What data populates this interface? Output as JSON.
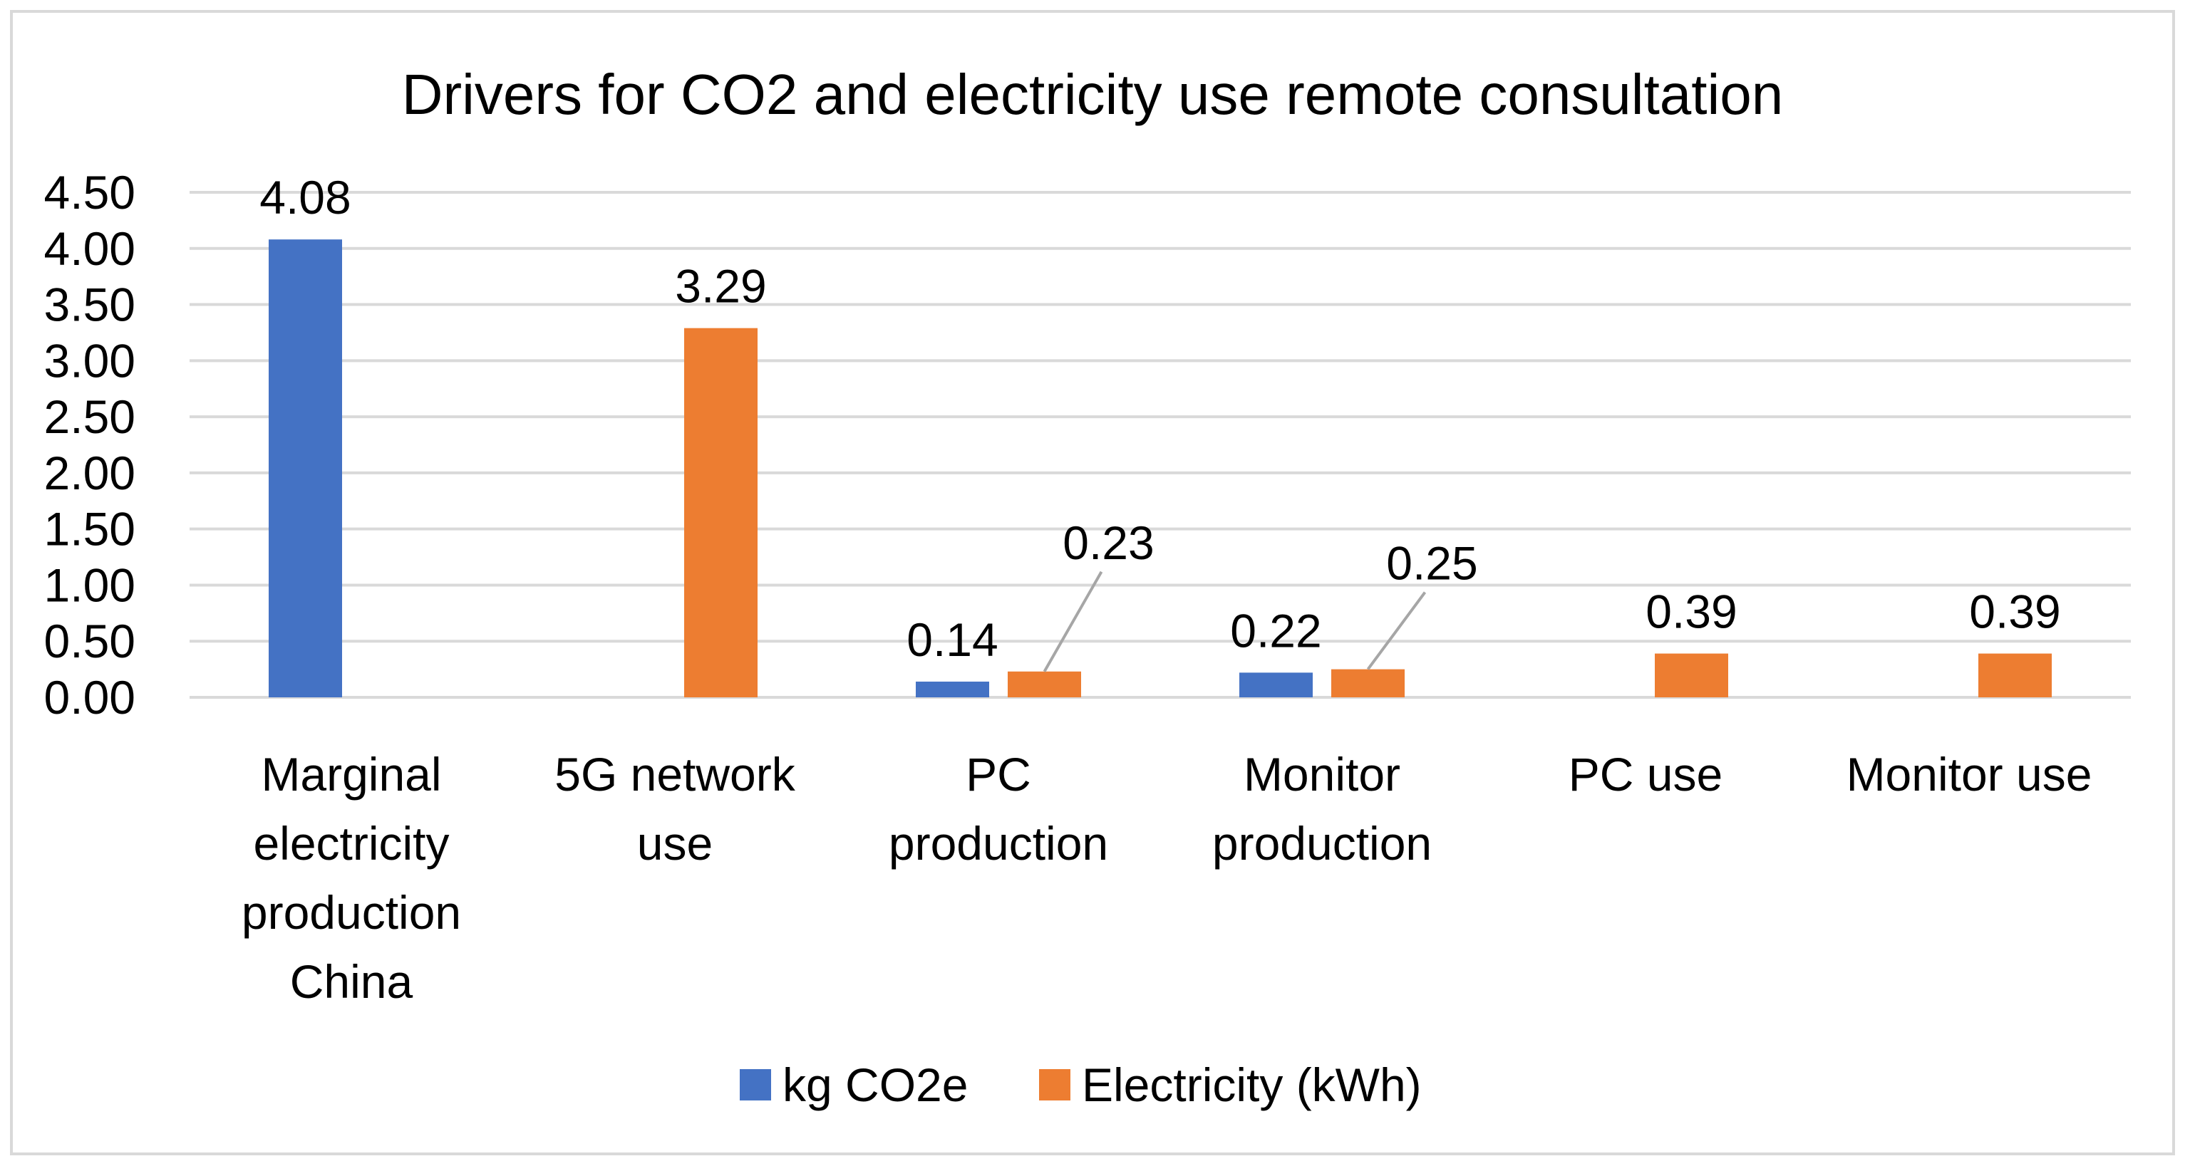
{
  "chart_data": {
    "type": "bar",
    "title": "Drivers for CO2 and electricity use remote consultation",
    "categories": [
      [
        "Marginal",
        "electricity",
        "production",
        "China"
      ],
      [
        "5G network",
        "use"
      ],
      [
        "PC",
        "production"
      ],
      [
        "Monitor",
        "production"
      ],
      [
        "PC use"
      ],
      [
        "Monitor use"
      ]
    ],
    "series": [
      {
        "name": "kg CO2e",
        "color": "#4472C4",
        "values": [
          4.08,
          null,
          0.14,
          0.22,
          null,
          null
        ]
      },
      {
        "name": "Electricity (kWh)",
        "color": "#ED7D31",
        "values": [
          null,
          3.29,
          0.23,
          0.25,
          0.39,
          0.39
        ]
      }
    ],
    "data_labels": [
      [
        "4.08",
        null,
        "0.14",
        "0.22",
        null,
        null
      ],
      [
        null,
        "3.29",
        "0.23",
        "0.25",
        "0.39",
        "0.39"
      ]
    ],
    "yticks": [
      "0.00",
      "0.50",
      "1.00",
      "1.50",
      "2.00",
      "2.50",
      "3.00",
      "3.50",
      "4.00",
      "4.50"
    ],
    "ylim": [
      0,
      4.5
    ],
    "xlabel": "",
    "ylabel": "",
    "grid": true,
    "legend": "bottom"
  }
}
